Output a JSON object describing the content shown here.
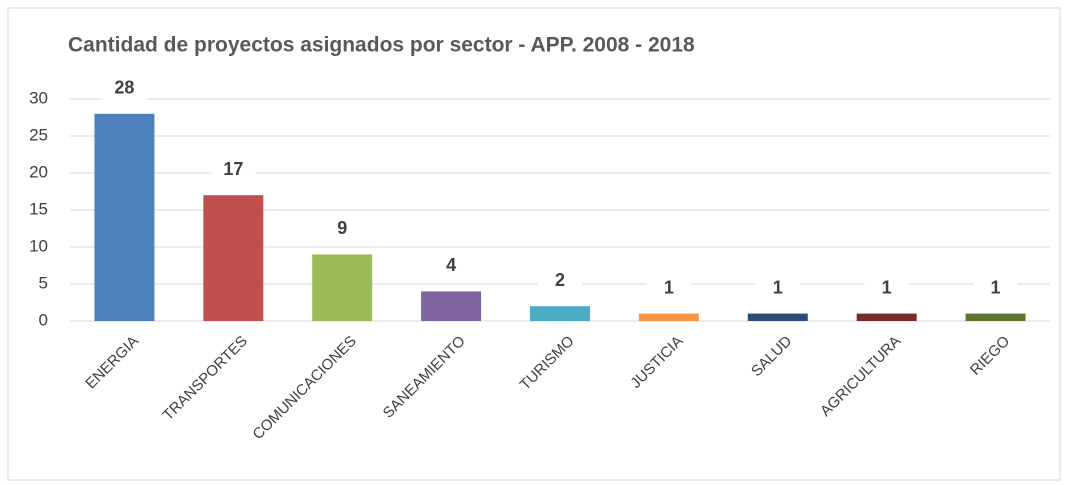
{
  "chart_data": {
    "type": "bar",
    "title": "Cantidad de proyectos asignados por sector - APP. 2008 - 2018",
    "categories": [
      "ENERGIA",
      "TRANSPORTES",
      "COMUNICACIONES",
      "SANEAMIENTO",
      "TURISMO",
      "JUSTICIA",
      "SALUD",
      "AGRICULTURA",
      "RIEGO"
    ],
    "values": [
      28,
      17,
      9,
      4,
      2,
      1,
      1,
      1,
      1
    ],
    "colors": [
      "#4f81bd",
      "#c0504d",
      "#9bbb59",
      "#8064a2",
      "#4bacc6",
      "#f79646",
      "#2c4d75",
      "#772c2a",
      "#5f7530"
    ],
    "ylim": [
      0,
      30
    ],
    "yticks": [
      0,
      5,
      10,
      15,
      20,
      25,
      30
    ],
    "grid": true
  }
}
